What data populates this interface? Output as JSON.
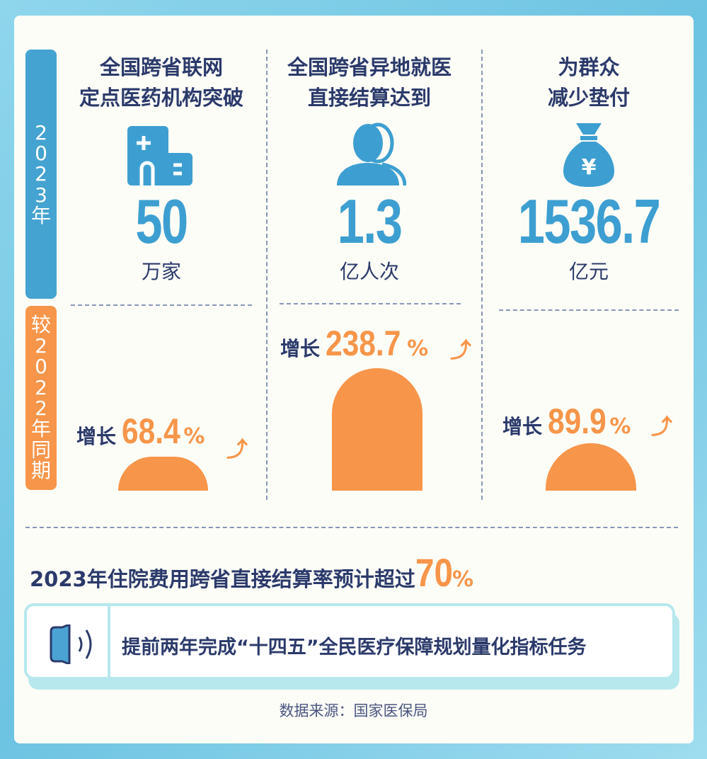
{
  "side": {
    "year_label": "2023年",
    "compare_label": "较2022年同期"
  },
  "columns": [
    {
      "title_line1": "全国跨省联网",
      "title_line2": "定点医药机构突破",
      "icon": "hospital-icon",
      "value": "50",
      "unit": "万家",
      "growth_label": "增长",
      "growth_value": "68.4",
      "growth_pct": "%"
    },
    {
      "title_line1": "全国跨省异地就医",
      "title_line2": "直接结算达到",
      "icon": "person-icon",
      "value": "1.3",
      "unit": "亿人次",
      "growth_label": "增长",
      "growth_value": "238.7",
      "growth_pct": "%"
    },
    {
      "title_line1": "为群众",
      "title_line2": "减少垫付",
      "icon": "money-bag-icon",
      "value": "1536.7",
      "unit": "亿元",
      "growth_label": "增长",
      "growth_value": "89.9",
      "growth_pct": "%"
    }
  ],
  "summary": {
    "text": "2023年住院费用跨省直接结算率预计超过",
    "value": "70",
    "pct": "%"
  },
  "notice": {
    "icon": "speaker-icon",
    "text": "提前两年完成“十四五”全民医疗保障规划量化指标任务"
  },
  "source": "数据来源：国家医保局",
  "colors": {
    "navy": "#2b3a6b",
    "blue": "#3d9fd1",
    "orange": "#f7954a"
  }
}
